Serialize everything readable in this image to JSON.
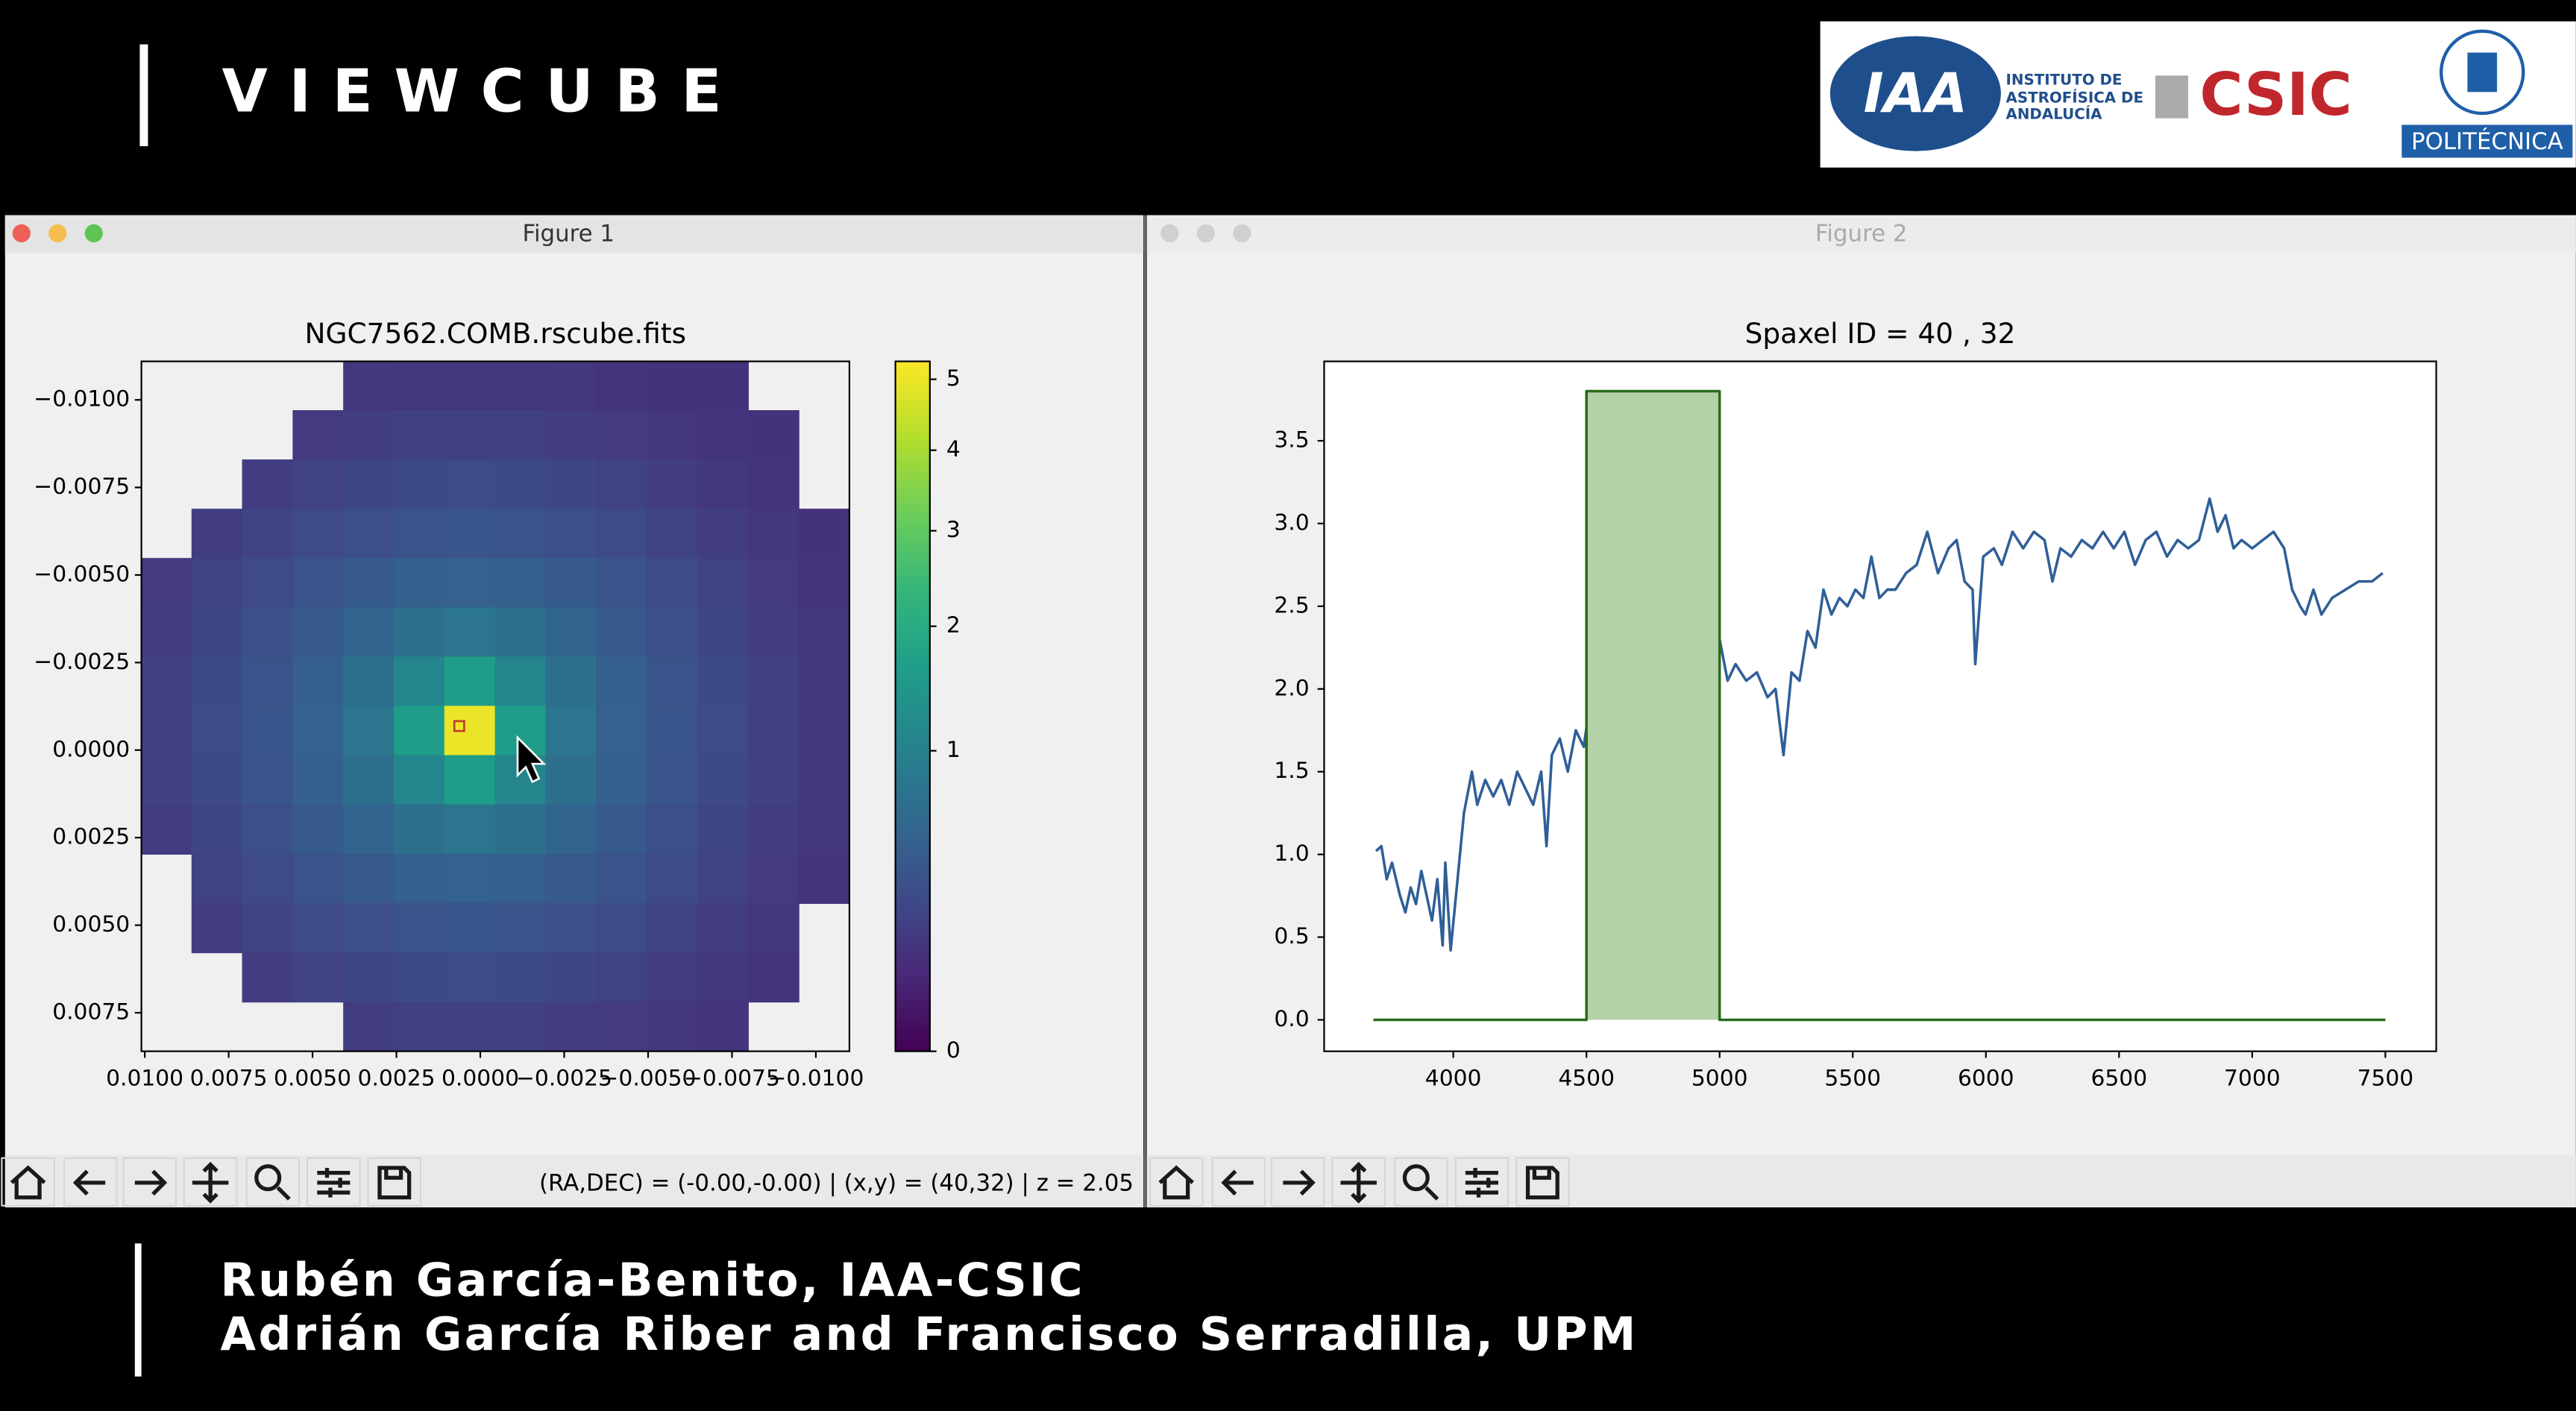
{
  "header": {
    "title": "VIEWCUBE"
  },
  "logos": {
    "iaa": "IAA",
    "iaa_name": [
      "INSTITUTO DE",
      "ASTROFÍSICA DE",
      "ANDALUCÍA"
    ],
    "csic": "CSIC",
    "upm": "POLITÉCNICA"
  },
  "windows": [
    {
      "title": "Figure 1",
      "status": "(RA,DEC) = (-0.00,-0.00) | (x,y) = (40,32) | z = 2.05",
      "chart": {
        "type": "heatmap",
        "title": "NGC7562.COMB.rscube.fits",
        "colormap": "viridis",
        "color_scale": "sqrt",
        "clim": [
          0,
          5.27
        ],
        "cticks": [
          0,
          1,
          2,
          3,
          4,
          5
        ],
        "yaxis_inverted": true,
        "xlim": [
          0.0101,
          -0.011
        ],
        "ylim": [
          -0.0111,
          0.0086
        ],
        "xticks": [
          {
            "value": 0.01,
            "label": "0.0100"
          },
          {
            "value": 0.0075,
            "label": "0.0075"
          },
          {
            "value": 0.005,
            "label": "0.0050"
          },
          {
            "value": 0.0025,
            "label": "0.0025"
          },
          {
            "value": 0,
            "label": "0.0000"
          },
          {
            "value": -0.0025,
            "label": "−0.0025"
          },
          {
            "value": -0.005,
            "label": "−0.0050"
          },
          {
            "value": -0.0075,
            "label": "−0.0075"
          },
          {
            "value": -0.01,
            "label": "−0.0100"
          }
        ],
        "yticks": [
          {
            "value": -0.01,
            "label": "−0.0100"
          },
          {
            "value": -0.0075,
            "label": "−0.0075"
          },
          {
            "value": -0.005,
            "label": "−0.0050"
          },
          {
            "value": -0.0025,
            "label": "−0.0025"
          },
          {
            "value": 0,
            "label": "0.0000"
          },
          {
            "value": 0.0025,
            "label": "0.0025"
          },
          {
            "value": 0.005,
            "label": "0.0050"
          },
          {
            "value": 0.0075,
            "label": "0.0075"
          }
        ],
        "grid": [
          [
            null,
            null,
            null,
            null,
            0.13,
            0.14,
            0.14,
            0.14,
            0.13,
            0.12,
            0.11,
            0.11,
            null,
            null
          ],
          [
            null,
            null,
            null,
            0.15,
            0.17,
            0.19,
            0.19,
            0.19,
            0.17,
            0.15,
            0.13,
            0.12,
            0.11,
            null
          ],
          [
            null,
            null,
            0.17,
            0.2,
            0.23,
            0.25,
            0.26,
            0.25,
            0.23,
            0.2,
            0.17,
            0.14,
            0.12,
            null
          ],
          [
            null,
            0.17,
            0.21,
            0.26,
            0.31,
            0.35,
            0.36,
            0.35,
            0.31,
            0.26,
            0.21,
            0.17,
            0.13,
            0.11
          ],
          [
            0.15,
            0.2,
            0.26,
            0.34,
            0.42,
            0.48,
            0.5,
            0.48,
            0.42,
            0.34,
            0.26,
            0.2,
            0.15,
            0.12
          ],
          [
            0.17,
            0.23,
            0.31,
            0.42,
            0.55,
            0.7,
            0.8,
            0.7,
            0.55,
            0.42,
            0.31,
            0.23,
            0.17,
            0.13
          ],
          [
            0.19,
            0.25,
            0.35,
            0.48,
            0.7,
            1.1,
            1.6,
            1.1,
            0.7,
            0.48,
            0.35,
            0.25,
            0.19,
            0.14
          ],
          [
            0.19,
            0.26,
            0.36,
            0.5,
            0.8,
            1.6,
            5.0,
            1.6,
            0.8,
            0.5,
            0.36,
            0.26,
            0.19,
            0.14
          ],
          [
            0.19,
            0.25,
            0.35,
            0.48,
            0.7,
            1.1,
            1.6,
            1.1,
            0.7,
            0.48,
            0.35,
            0.25,
            0.19,
            0.14
          ],
          [
            0.17,
            0.23,
            0.31,
            0.42,
            0.55,
            0.7,
            0.8,
            0.7,
            0.55,
            0.42,
            0.31,
            0.23,
            0.17,
            0.13
          ],
          [
            null,
            0.2,
            0.26,
            0.34,
            0.42,
            0.48,
            0.5,
            0.48,
            0.42,
            0.34,
            0.26,
            0.2,
            0.15,
            0.12
          ],
          [
            null,
            0.17,
            0.21,
            0.26,
            0.31,
            0.35,
            0.36,
            0.35,
            0.31,
            0.26,
            0.21,
            0.17,
            0.13,
            null
          ],
          [
            null,
            null,
            0.17,
            0.2,
            0.23,
            0.25,
            0.26,
            0.25,
            0.23,
            0.2,
            0.17,
            0.14,
            0.12,
            null
          ],
          [
            null,
            null,
            null,
            null,
            0.17,
            0.19,
            0.19,
            0.19,
            0.17,
            0.15,
            0.13,
            0.12,
            null,
            null
          ]
        ]
      }
    },
    {
      "title": "Figure 2",
      "chart": {
        "type": "line",
        "title": "Spaxel ID = 40 , 32",
        "xlim": [
          3515,
          7691
        ],
        "ylim": [
          -0.19,
          3.98
        ],
        "xticks": [
          4000,
          4500,
          5000,
          5500,
          6000,
          6500,
          7000,
          7500
        ],
        "yticks": [
          {
            "value": 0,
            "label": "0.0"
          },
          0.5,
          {
            "value": 1,
            "label": "1.0"
          },
          1.5,
          {
            "value": 2,
            "label": "2.0"
          },
          2.5,
          {
            "value": 3,
            "label": "3.0"
          },
          3.5
        ],
        "series": [
          {
            "color": "#2f5f97",
            "x": [
              3710,
              3730,
              3750,
              3770,
              3800,
              3820,
              3840,
              3860,
              3880,
              3900,
              3920,
              3940,
              3960,
              3970,
              3990,
              4010,
              4040,
              4070,
              4090,
              4120,
              4150,
              4180,
              4210,
              4240,
              4270,
              4300,
              4330,
              4350,
              4370,
              4400,
              4430,
              4460,
              4490,
              4520,
              4550,
              4580,
              4610,
              4640,
              4670,
              4700,
              4730,
              4760,
              4790,
              4820,
              4850,
              4880,
              4910,
              4940,
              4970,
              5000,
              5030,
              5060,
              5100,
              5140,
              5180,
              5210,
              5240,
              5270,
              5300,
              5330,
              5360,
              5390,
              5420,
              5450,
              5480,
              5510,
              5540,
              5570,
              5600,
              5630,
              5660,
              5700,
              5740,
              5780,
              5820,
              5860,
              5890,
              5920,
              5950,
              5960,
              5990,
              6030,
              6060,
              6100,
              6140,
              6180,
              6220,
              6250,
              6280,
              6320,
              6360,
              6400,
              6440,
              6480,
              6520,
              6560,
              6600,
              6640,
              6680,
              6720,
              6760,
              6800,
              6840,
              6870,
              6900,
              6930,
              6960,
              7000,
              7040,
              7080,
              7120,
              7150,
              7180,
              7200,
              7230,
              7260,
              7300,
              7350,
              7400,
              7450,
              7490
            ],
            "values": [
              1.02,
              1.05,
              0.85,
              0.95,
              0.75,
              0.65,
              0.8,
              0.7,
              0.9,
              0.75,
              0.6,
              0.85,
              0.45,
              0.95,
              0.42,
              0.75,
              1.25,
              1.5,
              1.3,
              1.45,
              1.35,
              1.45,
              1.3,
              1.5,
              1.4,
              1.3,
              1.5,
              1.05,
              1.6,
              1.7,
              1.5,
              1.75,
              1.65,
              2.0,
              1.85,
              2.1,
              2.0,
              2.2,
              1.95,
              2.1,
              2.0,
              2.15,
              2.05,
              2.2,
              2.0,
              2.25,
              2.1,
              2.3,
              2.15,
              2.3,
              2.05,
              2.15,
              2.05,
              2.1,
              1.95,
              2.0,
              1.6,
              2.1,
              2.05,
              2.35,
              2.25,
              2.6,
              2.45,
              2.55,
              2.5,
              2.6,
              2.55,
              2.8,
              2.55,
              2.6,
              2.6,
              2.7,
              2.75,
              2.95,
              2.7,
              2.85,
              2.9,
              2.65,
              2.6,
              2.15,
              2.8,
              2.85,
              2.75,
              2.95,
              2.85,
              2.95,
              2.9,
              2.65,
              2.85,
              2.8,
              2.9,
              2.85,
              2.95,
              2.85,
              2.95,
              2.75,
              2.9,
              2.95,
              2.8,
              2.9,
              2.85,
              2.9,
              3.15,
              2.95,
              3.05,
              2.85,
              2.9,
              2.85,
              2.9,
              2.95,
              2.85,
              2.6,
              2.5,
              2.45,
              2.6,
              2.45,
              2.55,
              2.6,
              2.65,
              2.65,
              2.7
            ]
          },
          {
            "color": "#2a6b1a",
            "fill": "#b5d1a8",
            "x": [
              3700,
              4500,
              4500,
              5000,
              5000,
              7500
            ],
            "values": [
              0,
              0,
              3.8,
              3.8,
              0,
              0
            ]
          }
        ]
      }
    }
  ],
  "credits": [
    "Rubén García-Benito, IAA-CSIC",
    "Adrián García Riber and Francisco Serradilla, UPM"
  ]
}
